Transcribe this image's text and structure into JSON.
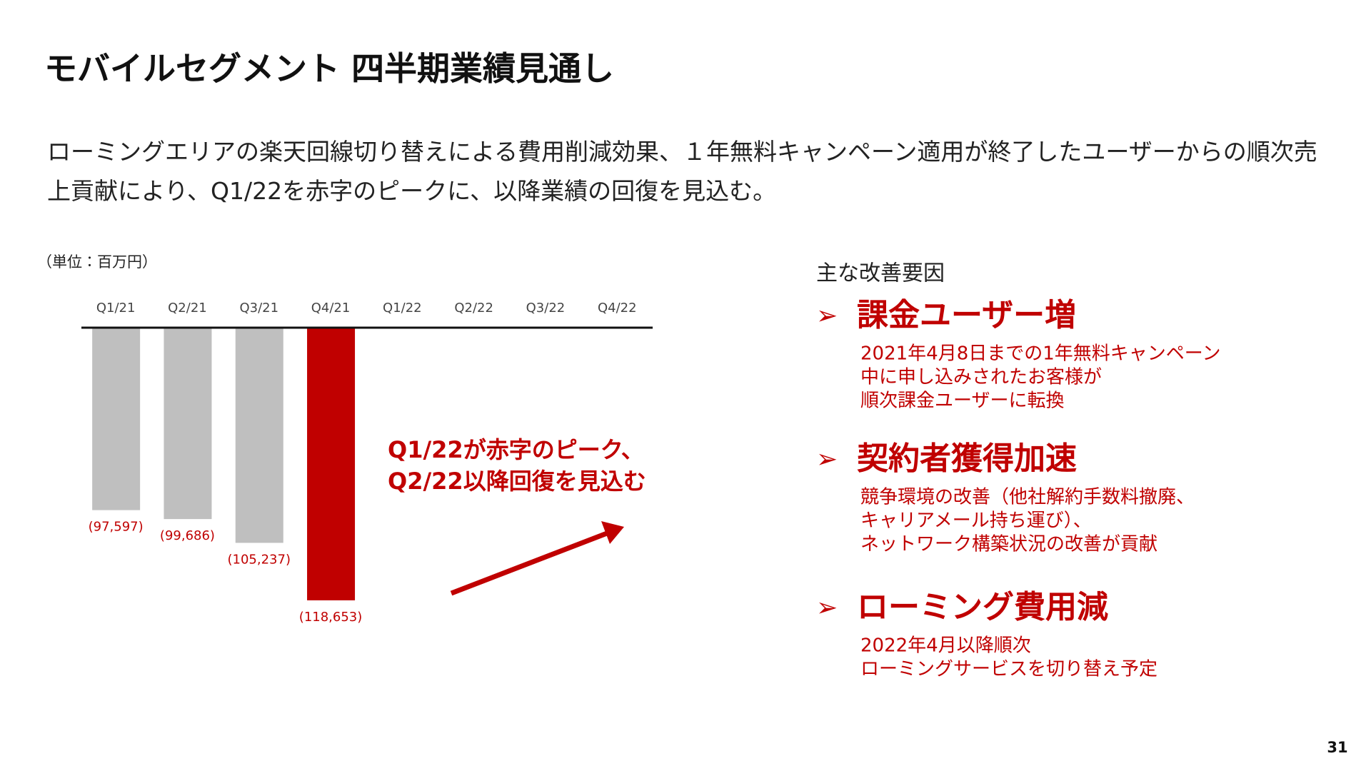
{
  "title": "モバイルセグメント 四半期業績見通し",
  "description": "ローミングエリアの楽天回線切り替えによる費用削減効果、１年無料キャンペーン適用が終了したユーザーからの順次売上貢献により、Q1/22を赤字のピークに、以降業績の回復を見込む。",
  "chart_data": {
    "type": "bar",
    "unit_label": "（単位：百万円）",
    "categories": [
      "Q1/21",
      "Q2/21",
      "Q3/21",
      "Q4/21",
      "Q1/22",
      "Q2/22",
      "Q3/22",
      "Q4/22"
    ],
    "values": [
      -97597,
      -99686,
      -105237,
      -118653,
      null,
      null,
      null,
      null
    ],
    "value_labels": [
      "(97,597)",
      "(99,686)",
      "(105,237)",
      "(118,653)",
      null,
      null,
      null,
      null
    ],
    "colors": [
      "#bfbfbf",
      "#bfbfbf",
      "#bfbfbf",
      "#c00000",
      null,
      null,
      null,
      null
    ],
    "ylim": [
      -125000,
      -55000
    ],
    "annotation": [
      "Q1/22が赤字のピーク、",
      "Q2/22以降回復を見込む"
    ]
  },
  "factors": {
    "heading": "主な改善要因",
    "items": [
      {
        "title": "課金ユーザー増",
        "lines": [
          "2021年4月8日までの1年無料キャンペーン",
          "中に申し込みされたお客様が",
          "順次課金ユーザーに転換"
        ]
      },
      {
        "title": "契約者獲得加速",
        "lines": [
          "競争環境の改善（他社解約手数料撤廃、",
          "キャリアメール持ち運び）、",
          "ネットワーク構築状況の改善が貢献"
        ]
      },
      {
        "title": "ローミング費用減",
        "lines": [
          "2022年4月以降順次",
          "ローミングサービスを切り替え予定"
        ]
      }
    ]
  },
  "page_number": "31"
}
